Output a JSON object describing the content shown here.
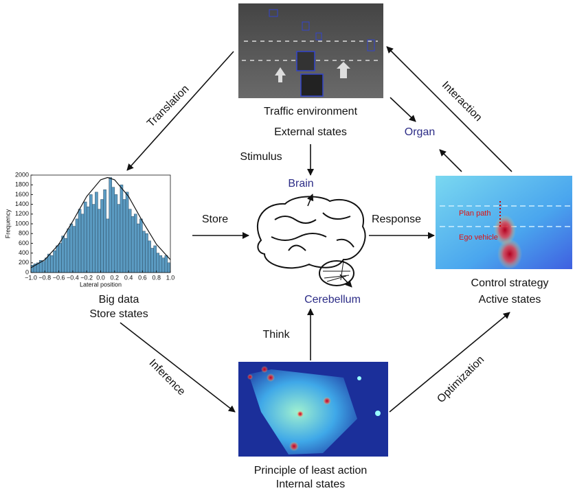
{
  "traffic": {
    "title": "Traffic environment",
    "subtitle": "External states"
  },
  "big_data": {
    "title": "Big data",
    "subtitle": "Store states"
  },
  "control": {
    "title": "Control strategy",
    "subtitle": "Active states",
    "annotations": [
      "Plan path",
      "Ego vehicle"
    ]
  },
  "principle": {
    "title": "Principle of least action",
    "subtitle": "Internal states"
  },
  "brain": {
    "brain": "Brain",
    "cerebellum": "Cerebellum",
    "organ": "Organ"
  },
  "edges": {
    "translation": "Translation",
    "interaction": "Interaction",
    "inference": "Inference",
    "optimization": "Optimization",
    "stimulus": "Stimulus",
    "store": "Store",
    "response": "Response",
    "think": "Think"
  },
  "chart_data": {
    "type": "histogram",
    "xlabel": "Lateral position",
    "ylabel": "Frequency",
    "color": "#5b9bc2",
    "bins": [
      -1,
      -0.96,
      -0.92,
      -0.88,
      -0.84,
      -0.8,
      -0.76,
      -0.72,
      -0.68,
      -0.64,
      -0.6,
      -0.56,
      -0.52,
      -0.48,
      -0.44,
      -0.4,
      -0.36,
      -0.32,
      -0.28,
      -0.24,
      -0.2,
      -0.16,
      -0.12,
      -0.08,
      -0.04,
      0,
      0.04,
      0.08,
      0.12,
      0.16,
      0.2,
      0.24,
      0.28,
      0.32,
      0.36,
      0.4,
      0.44,
      0.48,
      0.52,
      0.56,
      0.6,
      0.64,
      0.68,
      0.72,
      0.76,
      0.8,
      0.84,
      0.88,
      0.92,
      0.96,
      1
    ],
    "counts": [
      150,
      180,
      200,
      250,
      230,
      300,
      380,
      350,
      450,
      550,
      600,
      750,
      700,
      900,
      1000,
      950,
      1100,
      1300,
      1200,
      1450,
      1350,
      1600,
      1400,
      1650,
      1300,
      1500,
      1700,
      1100,
      1950,
      1750,
      1600,
      1400,
      1800,
      1500,
      1650,
      1300,
      1150,
      1200,
      1000,
      1100,
      850,
      800,
      650,
      500,
      550,
      400,
      350,
      300,
      350,
      200
    ],
    "fit": {
      "x": [
        -1,
        -0.8,
        -0.6,
        -0.4,
        -0.2,
        0,
        0.1,
        0.2,
        0.4,
        0.6,
        0.8,
        1
      ],
      "y": [
        98,
        264,
        581,
        1052,
        1562,
        1903,
        1950,
        1903,
        1562,
        1052,
        581,
        264
      ]
    },
    "xlim": [
      -1,
      1
    ],
    "ylim": [
      0,
      2000
    ],
    "xticks": [
      {
        "value": -1,
        "label": "−1.0"
      },
      {
        "value": -0.8,
        "label": "−0.8"
      },
      {
        "value": -0.6,
        "label": "−0.6"
      },
      {
        "value": -0.4,
        "label": "−0.4"
      },
      {
        "value": -0.2,
        "label": "−0.2"
      },
      {
        "value": 0,
        "label": "0.0"
      },
      0.2,
      0.4,
      0.6,
      0.8,
      {
        "value": 1,
        "label": "1.0"
      }
    ],
    "yticks": [
      0,
      200,
      400,
      600,
      800,
      1000,
      1200,
      1400,
      1600,
      1800,
      2000
    ]
  }
}
